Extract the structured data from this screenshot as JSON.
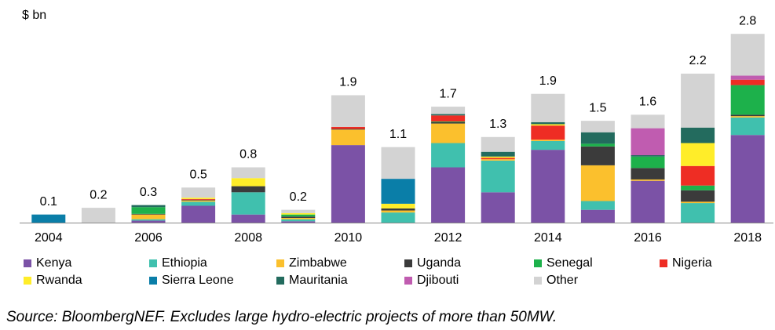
{
  "chart_data": {
    "type": "stacked_bar",
    "y_axis_label": "$ bn",
    "categories": [
      "2004",
      null,
      "2006",
      null,
      "2008",
      null,
      "2010",
      null,
      "2012",
      null,
      "2014",
      null,
      "2016",
      null,
      "2018"
    ],
    "ylim": [
      0,
      3
    ],
    "totals": [
      0.1,
      0.2,
      0.3,
      0.5,
      0.8,
      0.2,
      1.9,
      1.1,
      1.7,
      1.3,
      1.9,
      1.5,
      1.6,
      2.2,
      2.8
    ],
    "series": [
      {
        "name": "Kenya",
        "color": "#7b52a6",
        "values": [
          0,
          0,
          0.03,
          0.25,
          0.12,
          0.02,
          1.15,
          0,
          0.82,
          0.45,
          1.08,
          0.19,
          0.62,
          0,
          1.3
        ]
      },
      {
        "name": "Ethiopia",
        "color": "#40c0ae",
        "values": [
          0,
          0,
          0.02,
          0.06,
          0.33,
          0.03,
          0,
          0.15,
          0.36,
          0.47,
          0.13,
          0.13,
          0,
          0.29,
          0.26
        ]
      },
      {
        "name": "Zimbabwe",
        "color": "#fbc02d",
        "values": [
          0,
          0,
          0.07,
          0.02,
          0,
          0.02,
          0.23,
          0.03,
          0.29,
          0.02,
          0.02,
          0.53,
          0.02,
          0.02,
          0.02
        ]
      },
      {
        "name": "Uganda",
        "color": "#3b3b3b",
        "values": [
          0,
          0,
          0.01,
          0.01,
          0.09,
          0.02,
          0.01,
          0.03,
          0.02,
          0,
          0,
          0.28,
          0.17,
          0.17,
          0.02
        ]
      },
      {
        "name": "Senegal",
        "color": "#1db14b",
        "values": [
          0,
          0,
          0.1,
          0,
          0,
          0.03,
          0,
          0,
          0.01,
          0,
          0,
          0.04,
          0.17,
          0.07,
          0.44
        ]
      },
      {
        "name": "Nigeria",
        "color": "#ee2d24",
        "values": [
          0,
          0,
          0,
          0.01,
          0,
          0,
          0.03,
          0,
          0.09,
          0.02,
          0.21,
          0,
          0,
          0.29,
          0.08
        ]
      },
      {
        "name": "Rwanda",
        "color": "#ffed29",
        "values": [
          0,
          0,
          0,
          0.02,
          0.12,
          0.02,
          0,
          0.07,
          0,
          0.02,
          0.02,
          0,
          0,
          0.34,
          0
        ]
      },
      {
        "name": "Sierra Leone",
        "color": "#0a7ea8",
        "values": [
          0.12,
          0,
          0,
          0,
          0,
          0,
          0,
          0.37,
          0,
          0,
          0,
          0,
          0,
          0,
          0
        ]
      },
      {
        "name": "Mauritania",
        "color": "#236b5e",
        "values": [
          0,
          0,
          0.03,
          0,
          0,
          0,
          0,
          0,
          0.02,
          0.07,
          0.03,
          0.17,
          0.02,
          0.23,
          0
        ]
      },
      {
        "name": "Djibouti",
        "color": "#c05cb0",
        "values": [
          0,
          0,
          0,
          0,
          0,
          0,
          0,
          0,
          0,
          0,
          0,
          0,
          0.4,
          0,
          0.06
        ]
      },
      {
        "name": "Other",
        "color": "#d3d3d3",
        "values": [
          0,
          0.22,
          0,
          0.15,
          0.16,
          0.05,
          0.47,
          0.47,
          0.11,
          0.22,
          0.42,
          0.17,
          0.2,
          0.8,
          0.62
        ]
      }
    ],
    "source": "Source: BloombergNEF. Excludes large hydro-electric projects of more than 50MW."
  }
}
